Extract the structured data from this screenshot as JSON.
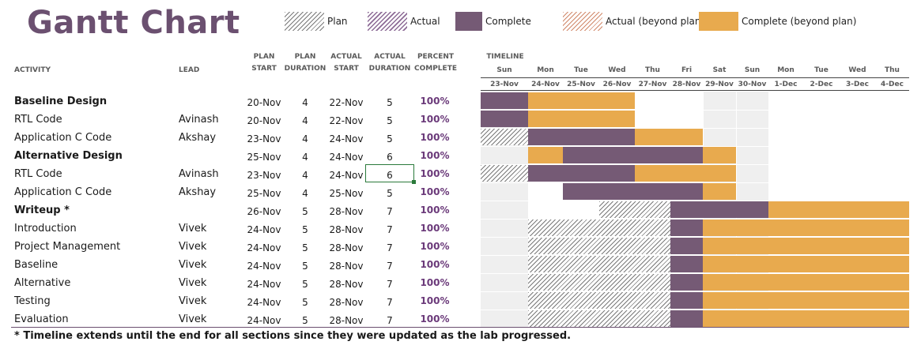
{
  "title": "Gantt Chart",
  "legend": [
    {
      "label": "Plan",
      "swatch": "plan"
    },
    {
      "label": "Actual",
      "swatch": "actual"
    },
    {
      "label": "Complete",
      "swatch": "complete"
    },
    {
      "label": "Actual (beyond plan)",
      "swatch": "actual-beyond"
    },
    {
      "label": "Complete (beyond plan)",
      "swatch": "complete-beyond"
    }
  ],
  "columns": {
    "activity": "ACTIVITY",
    "lead": "LEAD",
    "plan_start": [
      "PLAN",
      "START"
    ],
    "plan_duration": [
      "PLAN",
      "DURATION"
    ],
    "actual_start": [
      "ACTUAL",
      "START"
    ],
    "actual_duration": [
      "ACTUAL",
      "DURATION"
    ],
    "percent_complete": [
      "PERCENT",
      "COMPLETE"
    ],
    "timeline": "TIMELINE"
  },
  "timeline": [
    {
      "day": "Sun",
      "date": "23-Nov"
    },
    {
      "day": "Mon",
      "date": "24-Nov"
    },
    {
      "day": "Tue",
      "date": "25-Nov"
    },
    {
      "day": "Wed",
      "date": "26-Nov"
    },
    {
      "day": "Thu",
      "date": "27-Nov"
    },
    {
      "day": "Fri",
      "date": "28-Nov"
    },
    {
      "day": "Sat",
      "date": "29-Nov"
    },
    {
      "day": "Sun",
      "date": "30-Nov"
    },
    {
      "day": "Mon",
      "date": "1-Dec"
    },
    {
      "day": "Tue",
      "date": "2-Dec"
    },
    {
      "day": "Wed",
      "date": "3-Dec"
    },
    {
      "day": "Thu",
      "date": "4-Dec"
    }
  ],
  "rows": [
    {
      "activity": "Baseline Design",
      "lead": "",
      "plan_start": "20-Nov",
      "plan_duration": "4",
      "actual_start": "22-Nov",
      "actual_duration": "5",
      "percent": "100%",
      "bold": true
    },
    {
      "activity": "RTL Code",
      "lead": "Avinash",
      "plan_start": "20-Nov",
      "plan_duration": "4",
      "actual_start": "22-Nov",
      "actual_duration": "5",
      "percent": "100%",
      "bold": false
    },
    {
      "activity": "Application C Code",
      "lead": "Akshay",
      "plan_start": "23-Nov",
      "plan_duration": "4",
      "actual_start": "24-Nov",
      "actual_duration": "5",
      "percent": "100%",
      "bold": false
    },
    {
      "activity": "Alternative Design",
      "lead": "",
      "plan_start": "25-Nov",
      "plan_duration": "4",
      "actual_start": "24-Nov",
      "actual_duration": "6",
      "percent": "100%",
      "bold": true
    },
    {
      "activity": "RTL Code",
      "lead": "Avinash",
      "plan_start": "23-Nov",
      "plan_duration": "4",
      "actual_start": "24-Nov",
      "actual_duration": "6",
      "percent": "100%",
      "bold": false
    },
    {
      "activity": "Application C Code",
      "lead": "Akshay",
      "plan_start": "25-Nov",
      "plan_duration": "4",
      "actual_start": "25-Nov",
      "actual_duration": "5",
      "percent": "100%",
      "bold": false
    },
    {
      "activity": "Writeup *",
      "lead": "",
      "plan_start": "26-Nov",
      "plan_duration": "5",
      "actual_start": "28-Nov",
      "actual_duration": "7",
      "percent": "100%",
      "bold": true
    },
    {
      "activity": "Introduction",
      "lead": "Vivek",
      "plan_start": "24-Nov",
      "plan_duration": "5",
      "actual_start": "28-Nov",
      "actual_duration": "7",
      "percent": "100%",
      "bold": false
    },
    {
      "activity": "Project Management",
      "lead": "Vivek",
      "plan_start": "24-Nov",
      "plan_duration": "5",
      "actual_start": "28-Nov",
      "actual_duration": "7",
      "percent": "100%",
      "bold": false
    },
    {
      "activity": "Baseline",
      "lead": "Vivek",
      "plan_start": "24-Nov",
      "plan_duration": "5",
      "actual_start": "28-Nov",
      "actual_duration": "7",
      "percent": "100%",
      "bold": false
    },
    {
      "activity": "Alternative",
      "lead": "Vivek",
      "plan_start": "24-Nov",
      "plan_duration": "5",
      "actual_start": "28-Nov",
      "actual_duration": "7",
      "percent": "100%",
      "bold": false
    },
    {
      "activity": "Testing",
      "lead": "Vivek",
      "plan_start": "24-Nov",
      "plan_duration": "5",
      "actual_start": "28-Nov",
      "actual_duration": "7",
      "percent": "100%",
      "bold": false
    },
    {
      "activity": "Evaluation",
      "lead": "Vivek",
      "plan_start": "24-Nov",
      "plan_duration": "5",
      "actual_start": "28-Nov",
      "actual_duration": "7",
      "percent": "100%",
      "bold": false
    }
  ],
  "footnote": "* Timeline extends until the end for all sections since they were updated as the lab progressed.",
  "colors": {
    "title": "#6b5070",
    "complete": "#755a75",
    "complete_beyond": "#e8aa4e",
    "percent_text": "#6b3a7a",
    "selection": "#2a7a3a"
  }
}
